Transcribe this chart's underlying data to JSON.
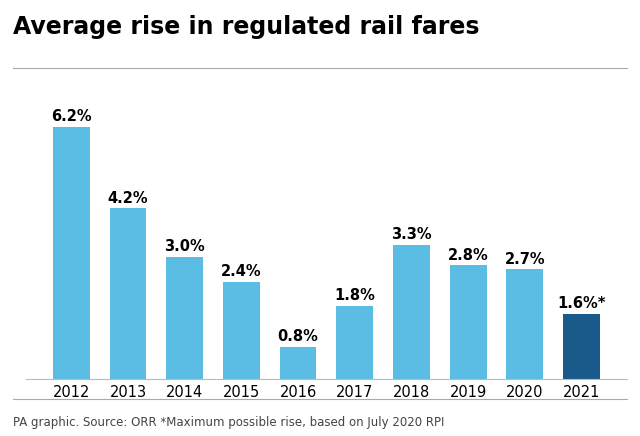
{
  "title": "Average rise in regulated rail fares",
  "categories": [
    "2012",
    "2013",
    "2014",
    "2015",
    "2016",
    "2017",
    "2018",
    "2019",
    "2020",
    "2021"
  ],
  "values": [
    6.2,
    4.2,
    3.0,
    2.4,
    0.8,
    1.8,
    3.3,
    2.8,
    2.7,
    1.6
  ],
  "labels": [
    "6.2%",
    "4.2%",
    "3.0%",
    "2.4%",
    "0.8%",
    "1.8%",
    "3.3%",
    "2.8%",
    "2.7%",
    "1.6%*"
  ],
  "bar_colors": [
    "#5bbde4",
    "#5bbde4",
    "#5bbde4",
    "#5bbde4",
    "#5bbde4",
    "#5bbde4",
    "#5bbde4",
    "#5bbde4",
    "#5bbde4",
    "#1a5a8a"
  ],
  "title_fontsize": 17,
  "label_fontsize": 10.5,
  "tick_fontsize": 10.5,
  "footer": "PA graphic. Source: ORR *Maximum possible rise, based on July 2020 RPI",
  "footer_fontsize": 8.5,
  "background_color": "#ffffff",
  "ylim": [
    0,
    7.5
  ]
}
